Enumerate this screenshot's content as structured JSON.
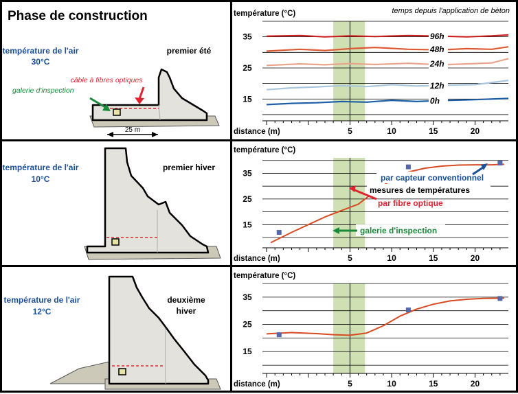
{
  "title": "Phase de construction",
  "colors": {
    "blue_text": "#1a4f99",
    "red": "#e0242f",
    "green": "#1a8a3a",
    "band": "#cfe0b3",
    "concrete": "#e3e2dc",
    "ground": "#cdc9b8"
  },
  "left": {
    "row1": {
      "air_label": "température de l'air",
      "air_temp": "30°C",
      "season": "premier été",
      "cable_label": "câble à fibres optiques",
      "gallery_label": "galerie d'inspection",
      "scale_label": "25 m"
    },
    "row2": {
      "air_label": "température de l'air",
      "air_temp": "10°C",
      "season": "premier hiver"
    },
    "row3": {
      "air_label": "température de l'air",
      "air_temp": "12°C",
      "season_line1": "deuxième",
      "season_line2": "hiver"
    }
  },
  "chart_data": [
    {
      "type": "line",
      "ylabel": "température (°C)",
      "xlabel": "distance (m)",
      "legend_title": "temps depuis l'application de bèton",
      "xlim": [
        -5.5,
        24
      ],
      "ylim": [
        8,
        40
      ],
      "xticks": [
        5,
        10,
        15,
        20
      ],
      "yticks": [
        15,
        25,
        35
      ],
      "band": [
        3.0,
        6.8
      ],
      "series": [
        {
          "name": "96h",
          "color": "#cc2222",
          "x": [
            -5,
            -1,
            2,
            5,
            8,
            12,
            16,
            19,
            22,
            24
          ],
          "y": [
            35.2,
            35.4,
            35.0,
            35.3,
            35.1,
            35.4,
            35.2,
            35.0,
            35.3,
            35.6
          ]
        },
        {
          "name": "48h",
          "color": "#dd5a33",
          "x": [
            -5,
            -1,
            2,
            5,
            8,
            12,
            16,
            19,
            22,
            24
          ],
          "y": [
            30.4,
            31.0,
            30.6,
            31.2,
            31.6,
            31.0,
            30.8,
            31.2,
            31.0,
            31.8
          ]
        },
        {
          "name": "24h",
          "color": "#e8a58c",
          "x": [
            -5,
            -1,
            2,
            5,
            8,
            12,
            16,
            19,
            22,
            24
          ],
          "y": [
            25.8,
            26.3,
            26.0,
            26.4,
            26.1,
            26.5,
            26.0,
            26.3,
            26.6,
            28.0
          ]
        },
        {
          "name": "12h",
          "color": "#a9c6dd",
          "x": [
            -5,
            -2,
            1,
            4,
            7,
            10,
            13,
            16,
            20,
            24
          ],
          "y": [
            18.0,
            18.6,
            18.9,
            19.3,
            19.0,
            19.6,
            19.2,
            19.4,
            19.6,
            21.0
          ]
        },
        {
          "name": "0h",
          "color": "#1d5fa6",
          "x": [
            -5,
            -2,
            1,
            4,
            7,
            10,
            13,
            16,
            20,
            24
          ],
          "y": [
            13.2,
            13.6,
            13.8,
            14.2,
            14.0,
            14.6,
            14.2,
            14.5,
            14.8,
            15.2
          ]
        }
      ]
    },
    {
      "type": "line",
      "ylabel": "température (°C)",
      "xlabel": "distance (m)",
      "xlim": [
        -5.5,
        24
      ],
      "ylim": [
        6,
        41
      ],
      "xticks": [
        5,
        10,
        15,
        20
      ],
      "yticks": [
        15,
        25,
        35
      ],
      "band": [
        3.0,
        6.8
      ],
      "series": [
        {
          "name": "par fibre optique",
          "color": "#d84a22",
          "x": [
            -4.5,
            -2,
            0,
            2,
            4,
            6,
            8,
            10,
            12,
            14,
            16,
            18,
            20,
            22,
            23.5
          ],
          "y": [
            8,
            12,
            15,
            18,
            20.5,
            23,
            28,
            32.5,
            35.5,
            37,
            37.8,
            38.2,
            38.3,
            38.3,
            38.5
          ]
        }
      ],
      "points": {
        "name": "par capteur conventionnel",
        "color": "#5566aa",
        "x": [
          -3.5,
          12,
          23
        ],
        "y": [
          12,
          37.5,
          39
        ]
      },
      "annotations": {
        "conventional": "par capteur conventionnel",
        "measures": "mesures de températures",
        "fibre": "par fibre optique",
        "gallery": "galerie d'inspection"
      }
    },
    {
      "type": "line",
      "ylabel": "température (°C)",
      "xlabel": "distance (m)",
      "xlim": [
        -5.5,
        24
      ],
      "ylim": [
        7,
        40
      ],
      "xticks": [
        5,
        10,
        15,
        20
      ],
      "yticks": [
        15,
        25,
        35
      ],
      "band": [
        3.0,
        6.8
      ],
      "series": [
        {
          "name": "fibre",
          "color": "#d84a22",
          "x": [
            -5,
            -2,
            1,
            3,
            5,
            7,
            9,
            11,
            13,
            15,
            17,
            19,
            21,
            23.5
          ],
          "y": [
            21.5,
            22.0,
            21.6,
            21.2,
            21.0,
            21.8,
            24.5,
            28.0,
            30.6,
            32.4,
            33.6,
            34.2,
            34.5,
            34.6
          ]
        }
      ],
      "points": {
        "name": "capteur",
        "color": "#5566aa",
        "x": [
          -3.5,
          12,
          23
        ],
        "y": [
          21.2,
          30.3,
          34.5
        ]
      }
    }
  ]
}
